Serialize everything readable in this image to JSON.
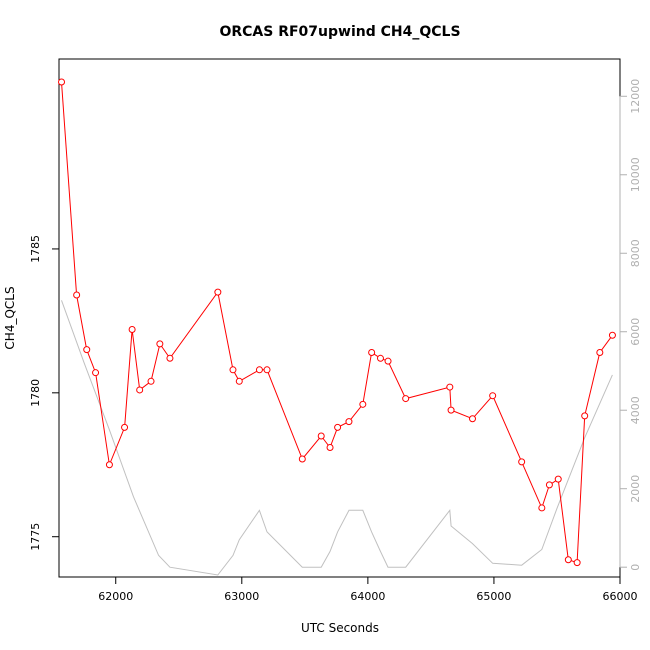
{
  "chart_data": {
    "type": "line",
    "title": "ORCAS RF07upwind CH4_QCLS",
    "xlabel": "UTC Seconds",
    "ylabel": "CH4_QCLS",
    "y2label": "",
    "xlim": [
      61550,
      66000
    ],
    "ylim": [
      1773.6,
      1791.6
    ],
    "y2lim": [
      -250,
      12950
    ],
    "x_ticks": [
      62000,
      63000,
      64000,
      65000,
      66000
    ],
    "y_ticks": [
      1775,
      1780,
      1785
    ],
    "y2_ticks": [
      0,
      2000,
      4000,
      6000,
      8000,
      10000,
      12000
    ],
    "grid": false,
    "colors": {
      "primary": "#ff0000",
      "secondary": "#c0c0c0",
      "axis": "#000000",
      "axis_right": "#b0b0b0"
    },
    "series": [
      {
        "axis": "left",
        "style": "line+points",
        "x": [
          61570,
          61690,
          61770,
          61840,
          61950,
          62070,
          62130,
          62190,
          62280,
          62350,
          62430,
          62810,
          62930,
          62980,
          63140,
          63200,
          63480,
          63630,
          63700,
          63760,
          63850,
          63960,
          64030,
          64100,
          64160,
          64300,
          64650,
          64660,
          64830,
          64990,
          65220,
          65380,
          65440,
          65510,
          65590,
          65660,
          65720,
          65840,
          65940
        ],
        "y": [
          1790.8,
          1783.4,
          1781.5,
          1780.7,
          1777.5,
          1778.8,
          1782.2,
          1780.1,
          1780.4,
          1781.7,
          1781.2,
          1783.5,
          1780.8,
          1780.4,
          1780.8,
          1780.8,
          1777.7,
          1778.5,
          1778.1,
          1778.8,
          1779.0,
          1779.6,
          1781.4,
          1781.2,
          1781.1,
          1779.8,
          1780.2,
          1779.4,
          1779.1,
          1779.9,
          1777.6,
          1776.0,
          1776.8,
          1777.0,
          1774.2,
          1774.1,
          1779.2,
          1781.4,
          1782.0
        ]
      },
      {
        "axis": "right",
        "style": "line",
        "x": [
          61570,
          61750,
          61950,
          62140,
          62340,
          62430,
          62810,
          62930,
          62980,
          63140,
          63200,
          63480,
          63630,
          63700,
          63760,
          63850,
          63960,
          64030,
          64100,
          64160,
          64300,
          64650,
          64660,
          64830,
          64990,
          65220,
          65380,
          65500,
          65720,
          65940
        ],
        "y": [
          6800,
          5200,
          3500,
          1800,
          300,
          0,
          -200,
          300,
          700,
          1450,
          900,
          0,
          0,
          400,
          900,
          1450,
          1450,
          900,
          400,
          0,
          0,
          1450,
          1050,
          600,
          100,
          50,
          450,
          1500,
          3300,
          4900
        ]
      }
    ]
  }
}
